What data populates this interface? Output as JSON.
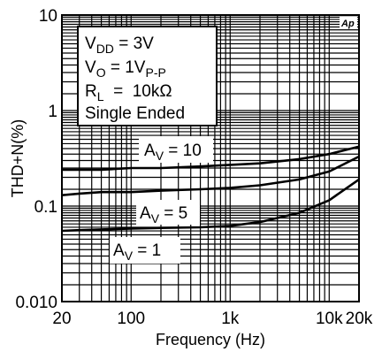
{
  "chart_data": {
    "type": "line",
    "title": "",
    "xlabel": "Frequency (Hz)",
    "ylabel": "THD+N(%)",
    "x_scale": "log",
    "y_scale": "log",
    "xlim": [
      20,
      20000
    ],
    "ylim": [
      0.01,
      10
    ],
    "grid": true,
    "x_tick_labels": [
      {
        "value": 20,
        "label": "20"
      },
      {
        "value": 100,
        "label": "100"
      },
      {
        "value": 1000,
        "label": "1k"
      },
      {
        "value": 10000,
        "label": "10k"
      },
      {
        "value": 20000,
        "label": "20k"
      }
    ],
    "y_tick_labels": [
      {
        "value": 10,
        "label": "10"
      },
      {
        "value": 1,
        "label": "1"
      },
      {
        "value": 0.1,
        "label": "0.1"
      },
      {
        "value": 0.01,
        "label": "0.010"
      }
    ],
    "conditions": {
      "vdd": {
        "main": "V",
        "sub": "DD",
        "rest": " = 3V"
      },
      "vo": {
        "main": "V",
        "sub": "O",
        "rest": " = 1V",
        "sub2": "P-P"
      },
      "rl": {
        "main": "R",
        "sub": "L",
        "rest": "  =  10kΩ"
      },
      "mode": "Single Ended"
    },
    "logo": "Ap",
    "series": [
      {
        "label": {
          "main": "A",
          "sub": "V",
          "rest": " = 10"
        },
        "x": [
          20,
          30,
          50,
          100,
          200,
          500,
          1000,
          2000,
          5000,
          10000,
          20000
        ],
        "y": [
          0.24,
          0.24,
          0.24,
          0.25,
          0.25,
          0.26,
          0.27,
          0.28,
          0.31,
          0.35,
          0.42
        ]
      },
      {
        "label": {
          "main": "A",
          "sub": "V",
          "rest": " = 5"
        },
        "x": [
          20,
          30,
          50,
          100,
          200,
          500,
          1000,
          2000,
          5000,
          10000,
          20000
        ],
        "y": [
          0.13,
          0.135,
          0.14,
          0.14,
          0.145,
          0.15,
          0.155,
          0.165,
          0.19,
          0.23,
          0.33
        ]
      },
      {
        "label": {
          "main": "A",
          "sub": "V",
          "rest": " = 1"
        },
        "x": [
          20,
          30,
          50,
          100,
          200,
          500,
          1000,
          2000,
          5000,
          10000,
          20000
        ],
        "y": [
          0.055,
          0.056,
          0.057,
          0.058,
          0.059,
          0.06,
          0.062,
          0.068,
          0.085,
          0.115,
          0.19
        ]
      }
    ]
  }
}
